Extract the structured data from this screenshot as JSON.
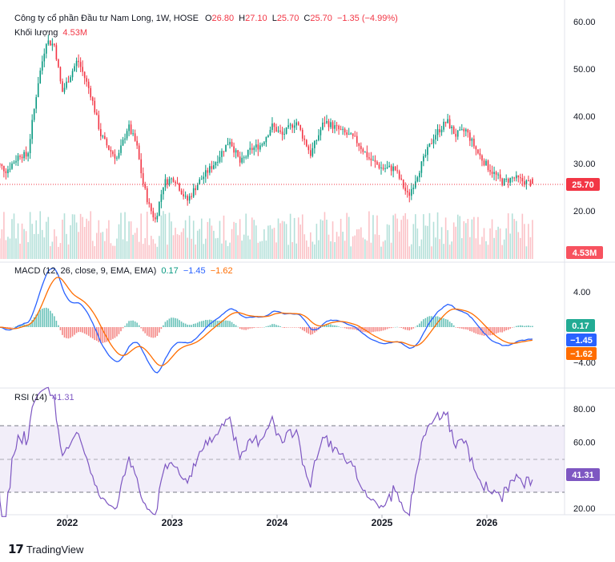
{
  "main_legend": {
    "title": "Công ty cổ phần Đầu tư Nam Long, 1W, HOSE",
    "o_key": "O",
    "o_val": "26.80",
    "h_key": "H",
    "h_val": "27.10",
    "l_key": "L",
    "l_val": "25.70",
    "c_key": "C",
    "c_val": "25.70",
    "change": "−1.35 (−4.99%)",
    "volume_label": "Khối lượng",
    "volume_value": "4.53M"
  },
  "macd_legend": {
    "title": "MACD (12, 26, close, 9, EMA, EMA)",
    "hist": "0.17",
    "macd": "−1.45",
    "signal": "−1.62"
  },
  "rsi_legend": {
    "title": "RSI (14)",
    "value": "41.31"
  },
  "badges": {
    "price": "25.70",
    "volume": "4.53M",
    "hist": "0.17",
    "macd": "−1.45",
    "signal": "−1.62",
    "rsi": "41.31"
  },
  "colors": {
    "up": "#089981",
    "down": "#f23645",
    "macd": "#2962ff",
    "signal": "#ff6d00",
    "rsi": "#7e57c2"
  },
  "brand": "TradingView",
  "chart_data": [
    {
      "type": "candlestick",
      "title": "Công ty cổ phần Đầu tư Nam Long, 1W, HOSE",
      "y_ticks": [
        "60.00",
        "50.00",
        "40.00",
        "30.00",
        "20.00"
      ],
      "ylim": [
        15,
        62
      ],
      "x_ticks": [
        "2022",
        "2023",
        "2024",
        "2025",
        "2026"
      ],
      "last_close": 25.7,
      "trend": [
        [
          2021.33,
          30.0
        ],
        [
          2021.42,
          28.5
        ],
        [
          2021.55,
          32.0
        ],
        [
          2021.62,
          31.5
        ],
        [
          2021.72,
          47.0
        ],
        [
          2021.8,
          56.0
        ],
        [
          2021.88,
          55.0
        ],
        [
          2021.95,
          45.0
        ],
        [
          2022.1,
          52.0
        ],
        [
          2022.22,
          45.0
        ],
        [
          2022.32,
          36.0
        ],
        [
          2022.4,
          33.0
        ],
        [
          2022.48,
          31.0
        ],
        [
          2022.58,
          38.0
        ],
        [
          2022.66,
          34.0
        ],
        [
          2022.72,
          26.0
        ],
        [
          2022.78,
          21.0
        ],
        [
          2022.84,
          18.0
        ],
        [
          2022.92,
          26.0
        ],
        [
          2023.02,
          27.0
        ],
        [
          2023.14,
          22.0
        ],
        [
          2023.25,
          26.0
        ],
        [
          2023.4,
          30.0
        ],
        [
          2023.55,
          35.0
        ],
        [
          2023.65,
          30.0
        ],
        [
          2023.75,
          33.0
        ],
        [
          2023.85,
          34.0
        ],
        [
          2023.95,
          38.0
        ],
        [
          2024.05,
          36.0
        ],
        [
          2024.18,
          39.0
        ],
        [
          2024.32,
          32.0
        ],
        [
          2024.45,
          39.0
        ],
        [
          2024.6,
          37.0
        ],
        [
          2024.75,
          35.0
        ],
        [
          2024.88,
          31.0
        ],
        [
          2025.0,
          29.0
        ],
        [
          2025.12,
          29.0
        ],
        [
          2025.25,
          23.0
        ],
        [
          2025.38,
          30.0
        ],
        [
          2025.5,
          36.0
        ],
        [
          2025.62,
          39.0
        ],
        [
          2025.7,
          36.0
        ],
        [
          2025.8,
          37.0
        ],
        [
          2025.92,
          32.0
        ],
        [
          2026.02,
          29.0
        ],
        [
          2026.15,
          26.0
        ],
        [
          2026.25,
          27.0
        ],
        [
          2026.38,
          26.0
        ],
        [
          2026.45,
          25.7
        ]
      ]
    },
    {
      "type": "bar",
      "title": "Khối lượng",
      "last_value": "4.53M"
    },
    {
      "type": "line",
      "title": "MACD (12, 26, close, 9, EMA, EMA)",
      "y_ticks": [
        "4.00",
        "−4.00"
      ],
      "series": [
        {
          "name": "Histogram",
          "last": 0.17
        },
        {
          "name": "MACD",
          "last": -1.45
        },
        {
          "name": "Signal",
          "last": -1.62
        }
      ]
    },
    {
      "type": "line",
      "title": "RSI (14)",
      "y_ticks": [
        "80.00",
        "60.00",
        "40.00",
        "20.00"
      ],
      "bands": [
        30,
        70
      ],
      "series": [
        {
          "name": "RSI",
          "last": 41.31
        }
      ]
    }
  ]
}
